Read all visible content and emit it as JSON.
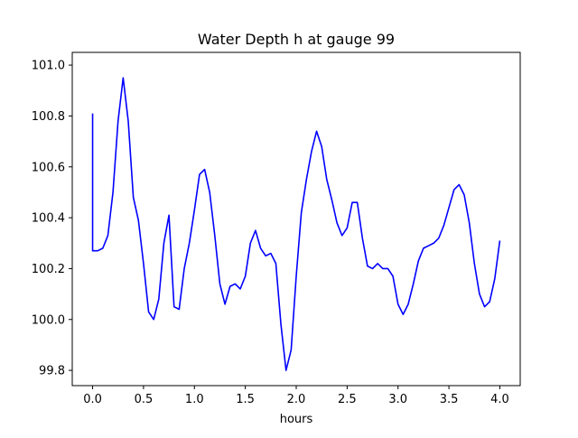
{
  "chart_data": {
    "type": "line",
    "title": "Water Depth h at gauge 99",
    "xlabel": "hours",
    "ylabel": "",
    "xlim": [
      -0.2,
      4.2
    ],
    "ylim": [
      99.74,
      101.05
    ],
    "x_ticks": [
      0.0,
      0.5,
      1.0,
      1.5,
      2.0,
      2.5,
      3.0,
      3.5,
      4.0
    ],
    "x_tick_labels": [
      "0.0",
      "0.5",
      "1.0",
      "1.5",
      "2.0",
      "2.5",
      "3.0",
      "3.5",
      "4.0"
    ],
    "y_ticks": [
      99.8,
      100.0,
      100.2,
      100.4,
      100.6,
      100.8,
      101.0
    ],
    "y_tick_labels": [
      "99.8",
      "100.0",
      "100.2",
      "100.4",
      "100.6",
      "100.8",
      "101.0"
    ],
    "grid": false,
    "series": [
      {
        "color": "#0000ff",
        "points": [
          [
            0.0,
            100.81
          ],
          [
            0.0,
            100.27
          ],
          [
            0.05,
            100.27
          ],
          [
            0.1,
            100.28
          ],
          [
            0.15,
            100.33
          ],
          [
            0.2,
            100.5
          ],
          [
            0.25,
            100.78
          ],
          [
            0.3,
            100.95
          ],
          [
            0.35,
            100.78
          ],
          [
            0.4,
            100.48
          ],
          [
            0.45,
            100.39
          ],
          [
            0.5,
            100.22
          ],
          [
            0.55,
            100.03
          ],
          [
            0.6,
            100.0
          ],
          [
            0.65,
            100.08
          ],
          [
            0.7,
            100.3
          ],
          [
            0.75,
            100.41
          ],
          [
            0.8,
            100.05
          ],
          [
            0.85,
            100.04
          ],
          [
            0.9,
            100.2
          ],
          [
            0.95,
            100.3
          ],
          [
            1.0,
            100.43
          ],
          [
            1.05,
            100.57
          ],
          [
            1.1,
            100.59
          ],
          [
            1.15,
            100.5
          ],
          [
            1.2,
            100.33
          ],
          [
            1.25,
            100.14
          ],
          [
            1.3,
            100.06
          ],
          [
            1.35,
            100.13
          ],
          [
            1.4,
            100.14
          ],
          [
            1.45,
            100.12
          ],
          [
            1.5,
            100.17
          ],
          [
            1.55,
            100.3
          ],
          [
            1.6,
            100.35
          ],
          [
            1.65,
            100.28
          ],
          [
            1.7,
            100.25
          ],
          [
            1.75,
            100.26
          ],
          [
            1.8,
            100.22
          ],
          [
            1.85,
            99.98
          ],
          [
            1.9,
            99.8
          ],
          [
            1.95,
            99.88
          ],
          [
            2.0,
            100.17
          ],
          [
            2.05,
            100.42
          ],
          [
            2.1,
            100.55
          ],
          [
            2.15,
            100.66
          ],
          [
            2.2,
            100.74
          ],
          [
            2.25,
            100.68
          ],
          [
            2.3,
            100.55
          ],
          [
            2.35,
            100.47
          ],
          [
            2.4,
            100.38
          ],
          [
            2.45,
            100.33
          ],
          [
            2.5,
            100.36
          ],
          [
            2.55,
            100.46
          ],
          [
            2.6,
            100.46
          ],
          [
            2.65,
            100.32
          ],
          [
            2.7,
            100.21
          ],
          [
            2.75,
            100.2
          ],
          [
            2.8,
            100.22
          ],
          [
            2.85,
            100.2
          ],
          [
            2.9,
            100.2
          ],
          [
            2.95,
            100.17
          ],
          [
            3.0,
            100.06
          ],
          [
            3.05,
            100.02
          ],
          [
            3.1,
            100.06
          ],
          [
            3.15,
            100.14
          ],
          [
            3.2,
            100.23
          ],
          [
            3.25,
            100.28
          ],
          [
            3.3,
            100.29
          ],
          [
            3.35,
            100.3
          ],
          [
            3.4,
            100.32
          ],
          [
            3.45,
            100.37
          ],
          [
            3.5,
            100.44
          ],
          [
            3.55,
            100.51
          ],
          [
            3.6,
            100.53
          ],
          [
            3.65,
            100.49
          ],
          [
            3.7,
            100.38
          ],
          [
            3.75,
            100.22
          ],
          [
            3.8,
            100.1
          ],
          [
            3.85,
            100.05
          ],
          [
            3.9,
            100.07
          ],
          [
            3.95,
            100.16
          ],
          [
            4.0,
            100.31
          ]
        ]
      }
    ]
  }
}
